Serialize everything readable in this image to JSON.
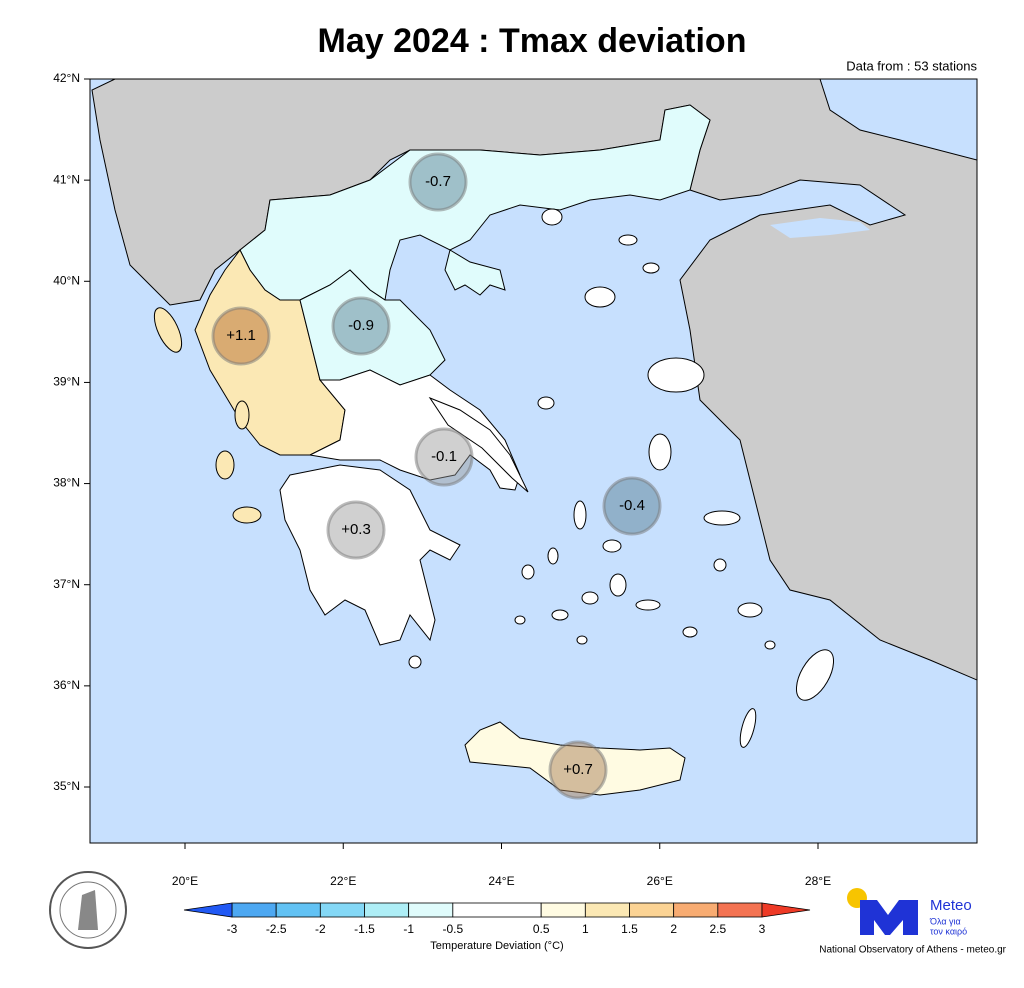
{
  "title": "May 2024 : Tmax deviation",
  "subtitle": "Data from : 53 stations",
  "lat_ticks": [
    {
      "value": 42,
      "label": "42°N"
    },
    {
      "value": 41,
      "label": "41°N"
    },
    {
      "value": 40,
      "label": "40°N"
    },
    {
      "value": 39,
      "label": "39°N"
    },
    {
      "value": 38,
      "label": "38°N"
    },
    {
      "value": 37,
      "label": "37°N"
    },
    {
      "value": 36,
      "label": "36°N"
    },
    {
      "value": 35,
      "label": "35°N"
    }
  ],
  "lon_ticks": [
    {
      "value": 20,
      "label": "20°E"
    },
    {
      "value": 22,
      "label": "22°E"
    },
    {
      "value": 24,
      "label": "24°E"
    },
    {
      "value": 26,
      "label": "26°E"
    },
    {
      "value": 28,
      "label": "28°E"
    }
  ],
  "regions": {
    "values": [
      -0.7,
      -0.9,
      1.1,
      -0.1,
      -0.4,
      0.3,
      0.7
    ],
    "value_labels": [
      "-0.7",
      "-0.9",
      "+1.1",
      "-0.1",
      "-0.4",
      "+0.3",
      "+0.7"
    ]
  },
  "colorbar": {
    "title": "Temperature Deviation (°C)",
    "ticks": [
      -3,
      -2.5,
      -2,
      -1.5,
      -1,
      -0.5,
      0.5,
      1,
      1.5,
      2,
      2.5,
      3
    ],
    "colors": [
      "#4da8f2",
      "#62c2f4",
      "#84d8f6",
      "#aeeef6",
      "#e0fcfc",
      "#ffffff",
      "#fffbe2",
      "#fbe8b4",
      "#fbd394",
      "#f8ac72",
      "#f47352"
    ],
    "under_color": "#2159f4",
    "over_color": "#ee3a26"
  },
  "logo": {
    "name": "Meteo",
    "tagline": [
      "Όλα για",
      "τον καιρό"
    ]
  },
  "credit": "National Observatory of Athens - meteo.gr"
}
